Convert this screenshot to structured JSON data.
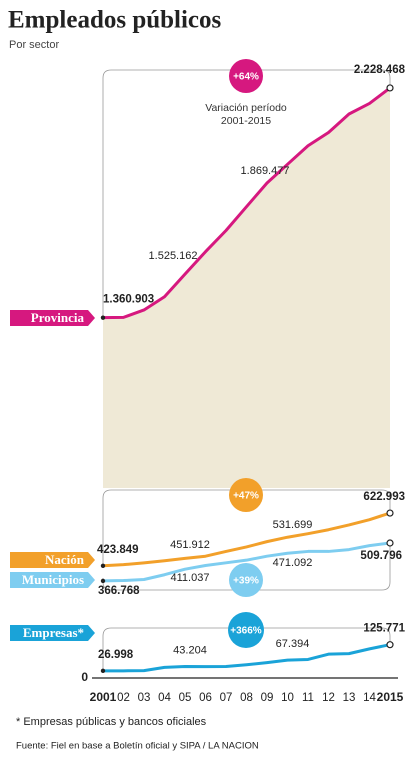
{
  "chart_data": {
    "type": "line",
    "title": "Empleados públicos",
    "subtitle": "Por sector",
    "categories": [
      "2001",
      "02",
      "03",
      "04",
      "05",
      "06",
      "07",
      "08",
      "09",
      "10",
      "11",
      "12",
      "13",
      "14",
      "2015"
    ],
    "ylim": [
      0,
      2300000
    ],
    "yticks": [
      0
    ],
    "series": [
      {
        "name": "Provincia",
        "color": "#d6187f",
        "values": [
          1360903,
          1362000,
          1390000,
          1440000,
          1525162,
          1610000,
          1690000,
          1780000,
          1869477,
          1940000,
          2010000,
          2060000,
          2130000,
          2170000,
          2228468
        ],
        "value_labels": [
          "1.360.903",
          null,
          null,
          null,
          "1.525.162",
          null,
          null,
          null,
          "1.869.477",
          null,
          null,
          null,
          null,
          null,
          "2.228.468"
        ]
      },
      {
        "name": "Nación",
        "color": "#f2a02a",
        "values": [
          423849,
          428000,
          435000,
          443000,
          451912,
          460000,
          478000,
          495000,
          515000,
          531699,
          545000,
          560000,
          578000,
          598000,
          622993
        ],
        "value_labels": [
          "423.849",
          null,
          null,
          null,
          "451.912",
          null,
          null,
          null,
          null,
          "531.699",
          null,
          null,
          null,
          null,
          "622.993"
        ]
      },
      {
        "name": "Municipios",
        "color": "#7ecdf0",
        "values": [
          366768,
          368000,
          372000,
          390000,
          411037,
          425000,
          435000,
          445000,
          460000,
          471092,
          478000,
          478000,
          485000,
          500000,
          509796
        ],
        "value_labels": [
          "366.768",
          null,
          null,
          null,
          "411.037",
          null,
          null,
          null,
          null,
          "471.092",
          null,
          null,
          null,
          null,
          "509.796"
        ]
      },
      {
        "name": "Empresas*",
        "color": "#1aa3d8",
        "values": [
          26998,
          27000,
          28000,
          40000,
          43204,
          43000,
          43500,
          50000,
          58000,
          67394,
          70000,
          90000,
          92000,
          110000,
          125771
        ],
        "value_labels": [
          "26.998",
          null,
          null,
          null,
          "43.204",
          null,
          null,
          null,
          null,
          "67.394",
          null,
          null,
          null,
          null,
          "125.771"
        ]
      }
    ],
    "annotations": [
      {
        "text": "+64%",
        "color": "#d6187f"
      },
      {
        "text": "+47%",
        "color": "#f2a02a"
      },
      {
        "text": "+39%",
        "color": "#7ecdf0"
      },
      {
        "text": "+366%",
        "color": "#1aa3d8"
      }
    ],
    "period_note": [
      "Variación período",
      "2001-2015"
    ],
    "footnote": "* Empresas públicas y bancos oficiales",
    "source": "Fuente:  Fiel en base a Boletín oficial y SIPA / LA NACION"
  }
}
